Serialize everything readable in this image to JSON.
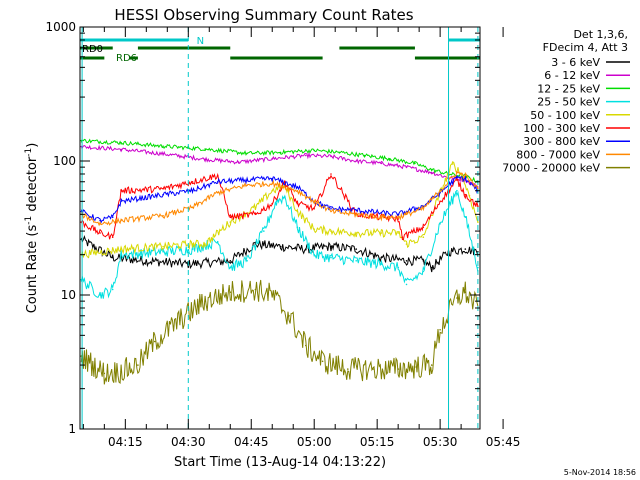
{
  "chart_data": {
    "type": "line",
    "title": "HESSI Observing Summary Count Rates",
    "xlabel": "Start Time (13-Aug-14 04:13:22)",
    "ylabel_main": "Count Rate (s",
    "ylabel_sup1": "-1",
    "ylabel_mid": " detector",
    "ylabel_sup2": "-1",
    "ylabel_end": ")",
    "y_scale": "log",
    "ylim": [
      1,
      1000
    ],
    "xlim_minutes": [
      4.2,
      99.5
    ],
    "y_ticks": [
      "1",
      "10",
      "100",
      "1000"
    ],
    "x_ticks": [
      {
        "label": "04:15",
        "minute": 15
      },
      {
        "label": "04:30",
        "minute": 30
      },
      {
        "label": "04:45",
        "minute": 45
      },
      {
        "label": "05:00",
        "minute": 60
      },
      {
        "label": "05:15",
        "minute": 75
      },
      {
        "label": "05:30",
        "minute": 90
      },
      {
        "label": "05:45",
        "minute": 105
      }
    ],
    "legend_header": [
      "Det 1,3,6,",
      "FDecim 4, Att 3"
    ],
    "legend_placement": "right",
    "series": [
      {
        "name": "3 - 6 keV",
        "color": "#000000",
        "values": [
          [
            4.5,
            26
          ],
          [
            12,
            19
          ],
          [
            20,
            18
          ],
          [
            30,
            17
          ],
          [
            40,
            18
          ],
          [
            46,
            24
          ],
          [
            52,
            23
          ],
          [
            58,
            22
          ],
          [
            64,
            23
          ],
          [
            70,
            22
          ],
          [
            76,
            19
          ],
          [
            82,
            18
          ],
          [
            86,
            18
          ],
          [
            88,
            16
          ],
          [
            92,
            21
          ],
          [
            96,
            22
          ],
          [
            99,
            21
          ]
        ]
      },
      {
        "name": "6 - 12 keV",
        "color": "#cc00cc",
        "values": [
          [
            4.5,
            128
          ],
          [
            14,
            122
          ],
          [
            24,
            113
          ],
          [
            34,
            103
          ],
          [
            42,
            98
          ],
          [
            50,
            104
          ],
          [
            58,
            110
          ],
          [
            64,
            108
          ],
          [
            70,
            100
          ],
          [
            76,
            96
          ],
          [
            82,
            90
          ],
          [
            88,
            82
          ],
          [
            92,
            75
          ],
          [
            96,
            72
          ],
          [
            99,
            64
          ]
        ]
      },
      {
        "name": "12 - 25 keV",
        "color": "#00dd00",
        "values": [
          [
            4.5,
            142
          ],
          [
            14,
            137
          ],
          [
            24,
            129
          ],
          [
            34,
            123
          ],
          [
            44,
            114
          ],
          [
            52,
            116
          ],
          [
            60,
            120
          ],
          [
            66,
            116
          ],
          [
            72,
            110
          ],
          [
            78,
            104
          ],
          [
            84,
            96
          ],
          [
            88,
            86
          ],
          [
            92,
            80
          ],
          [
            96,
            77
          ],
          [
            99,
            70
          ]
        ]
      },
      {
        "name": "25 - 50 keV",
        "color": "#00e0e0",
        "values": [
          [
            4.5,
            13
          ],
          [
            9,
            10
          ],
          [
            12,
            11
          ],
          [
            14,
            20
          ],
          [
            24,
            21
          ],
          [
            31,
            22
          ],
          [
            37,
            25
          ],
          [
            40,
            16
          ],
          [
            44,
            18
          ],
          [
            48,
            30
          ],
          [
            51,
            50
          ],
          [
            53,
            54
          ],
          [
            56,
            32
          ],
          [
            60,
            20
          ],
          [
            64,
            19
          ],
          [
            70,
            18
          ],
          [
            76,
            17
          ],
          [
            80,
            16
          ],
          [
            82,
            12
          ],
          [
            86,
            15
          ],
          [
            90,
            34
          ],
          [
            94,
            60
          ],
          [
            96,
            38
          ],
          [
            99,
            16
          ]
        ]
      },
      {
        "name": "50 - 100 keV",
        "color": "#d8d800",
        "values": [
          [
            4.5,
            20
          ],
          [
            14,
            22
          ],
          [
            24,
            23
          ],
          [
            31,
            24
          ],
          [
            34,
            24
          ],
          [
            40,
            35
          ],
          [
            46,
            45
          ],
          [
            50,
            60
          ],
          [
            53,
            65
          ],
          [
            56,
            42
          ],
          [
            60,
            31
          ],
          [
            64,
            30
          ],
          [
            70,
            29
          ],
          [
            76,
            29
          ],
          [
            80,
            29
          ],
          [
            82,
            24
          ],
          [
            86,
            27
          ],
          [
            90,
            58
          ],
          [
            93,
            95
          ],
          [
            95,
            80
          ],
          [
            97,
            55
          ],
          [
            99,
            35
          ]
        ]
      },
      {
        "name": "100 - 300 keV",
        "color": "#ff0000",
        "values": [
          [
            4.5,
            35
          ],
          [
            9,
            29
          ],
          [
            12,
            27
          ],
          [
            14,
            60
          ],
          [
            24,
            62
          ],
          [
            31,
            70
          ],
          [
            37,
            78
          ],
          [
            40,
            38
          ],
          [
            46,
            40
          ],
          [
            50,
            48
          ],
          [
            53,
            70
          ],
          [
            56,
            48
          ],
          [
            60,
            44
          ],
          [
            64,
            80
          ],
          [
            70,
            40
          ],
          [
            76,
            38
          ],
          [
            80,
            37
          ],
          [
            81,
            27
          ],
          [
            86,
            32
          ],
          [
            90,
            50
          ],
          [
            94,
            72
          ],
          [
            96,
            56
          ],
          [
            99,
            46
          ]
        ]
      },
      {
        "name": "300 - 800 keV",
        "color": "#0000ff",
        "values": [
          [
            4.5,
            42
          ],
          [
            9,
            36
          ],
          [
            12,
            38
          ],
          [
            14,
            50
          ],
          [
            24,
            56
          ],
          [
            31,
            60
          ],
          [
            37,
            70
          ],
          [
            44,
            72
          ],
          [
            50,
            74
          ],
          [
            56,
            64
          ],
          [
            60,
            50
          ],
          [
            64,
            44
          ],
          [
            70,
            43
          ],
          [
            76,
            41
          ],
          [
            80,
            40
          ],
          [
            82,
            42
          ],
          [
            86,
            46
          ],
          [
            90,
            58
          ],
          [
            94,
            75
          ],
          [
            96,
            74
          ],
          [
            99,
            60
          ]
        ]
      },
      {
        "name": "800 - 7000 keV",
        "color": "#ff8800",
        "values": [
          [
            4.5,
            40
          ],
          [
            9,
            34
          ],
          [
            14,
            36
          ],
          [
            24,
            39
          ],
          [
            31,
            45
          ],
          [
            37,
            58
          ],
          [
            44,
            66
          ],
          [
            50,
            68
          ],
          [
            56,
            60
          ],
          [
            60,
            50
          ],
          [
            64,
            42
          ],
          [
            70,
            40
          ],
          [
            76,
            38
          ],
          [
            80,
            38
          ],
          [
            82,
            40
          ],
          [
            86,
            44
          ],
          [
            90,
            60
          ],
          [
            94,
            82
          ],
          [
            96,
            78
          ],
          [
            99,
            62
          ]
        ]
      },
      {
        "name": "7000 - 20000 keV",
        "color": "#808000",
        "values": [
          [
            4.5,
            3.5
          ],
          [
            10,
            2.6
          ],
          [
            14,
            2.7
          ],
          [
            18,
            3
          ],
          [
            22,
            4.5
          ],
          [
            28,
            6.5
          ],
          [
            34,
            9
          ],
          [
            40,
            10.5
          ],
          [
            46,
            11
          ],
          [
            50,
            10
          ],
          [
            54,
            7
          ],
          [
            58,
            4.2
          ],
          [
            62,
            3.2
          ],
          [
            68,
            2.8
          ],
          [
            74,
            2.8
          ],
          [
            80,
            2.8
          ],
          [
            84,
            2.9
          ],
          [
            88,
            3
          ],
          [
            90,
            5.5
          ],
          [
            94,
            9.5
          ],
          [
            96,
            10.5
          ],
          [
            99,
            8
          ]
        ]
      }
    ],
    "flags": [
      {
        "label": "RD0",
        "color": "#00c8c8"
      },
      {
        "label": "N",
        "color": "#00c8c8"
      },
      {
        "label": "RD6",
        "color": "#006600"
      }
    ],
    "timestamp": "5-Nov-2014 18:56"
  }
}
